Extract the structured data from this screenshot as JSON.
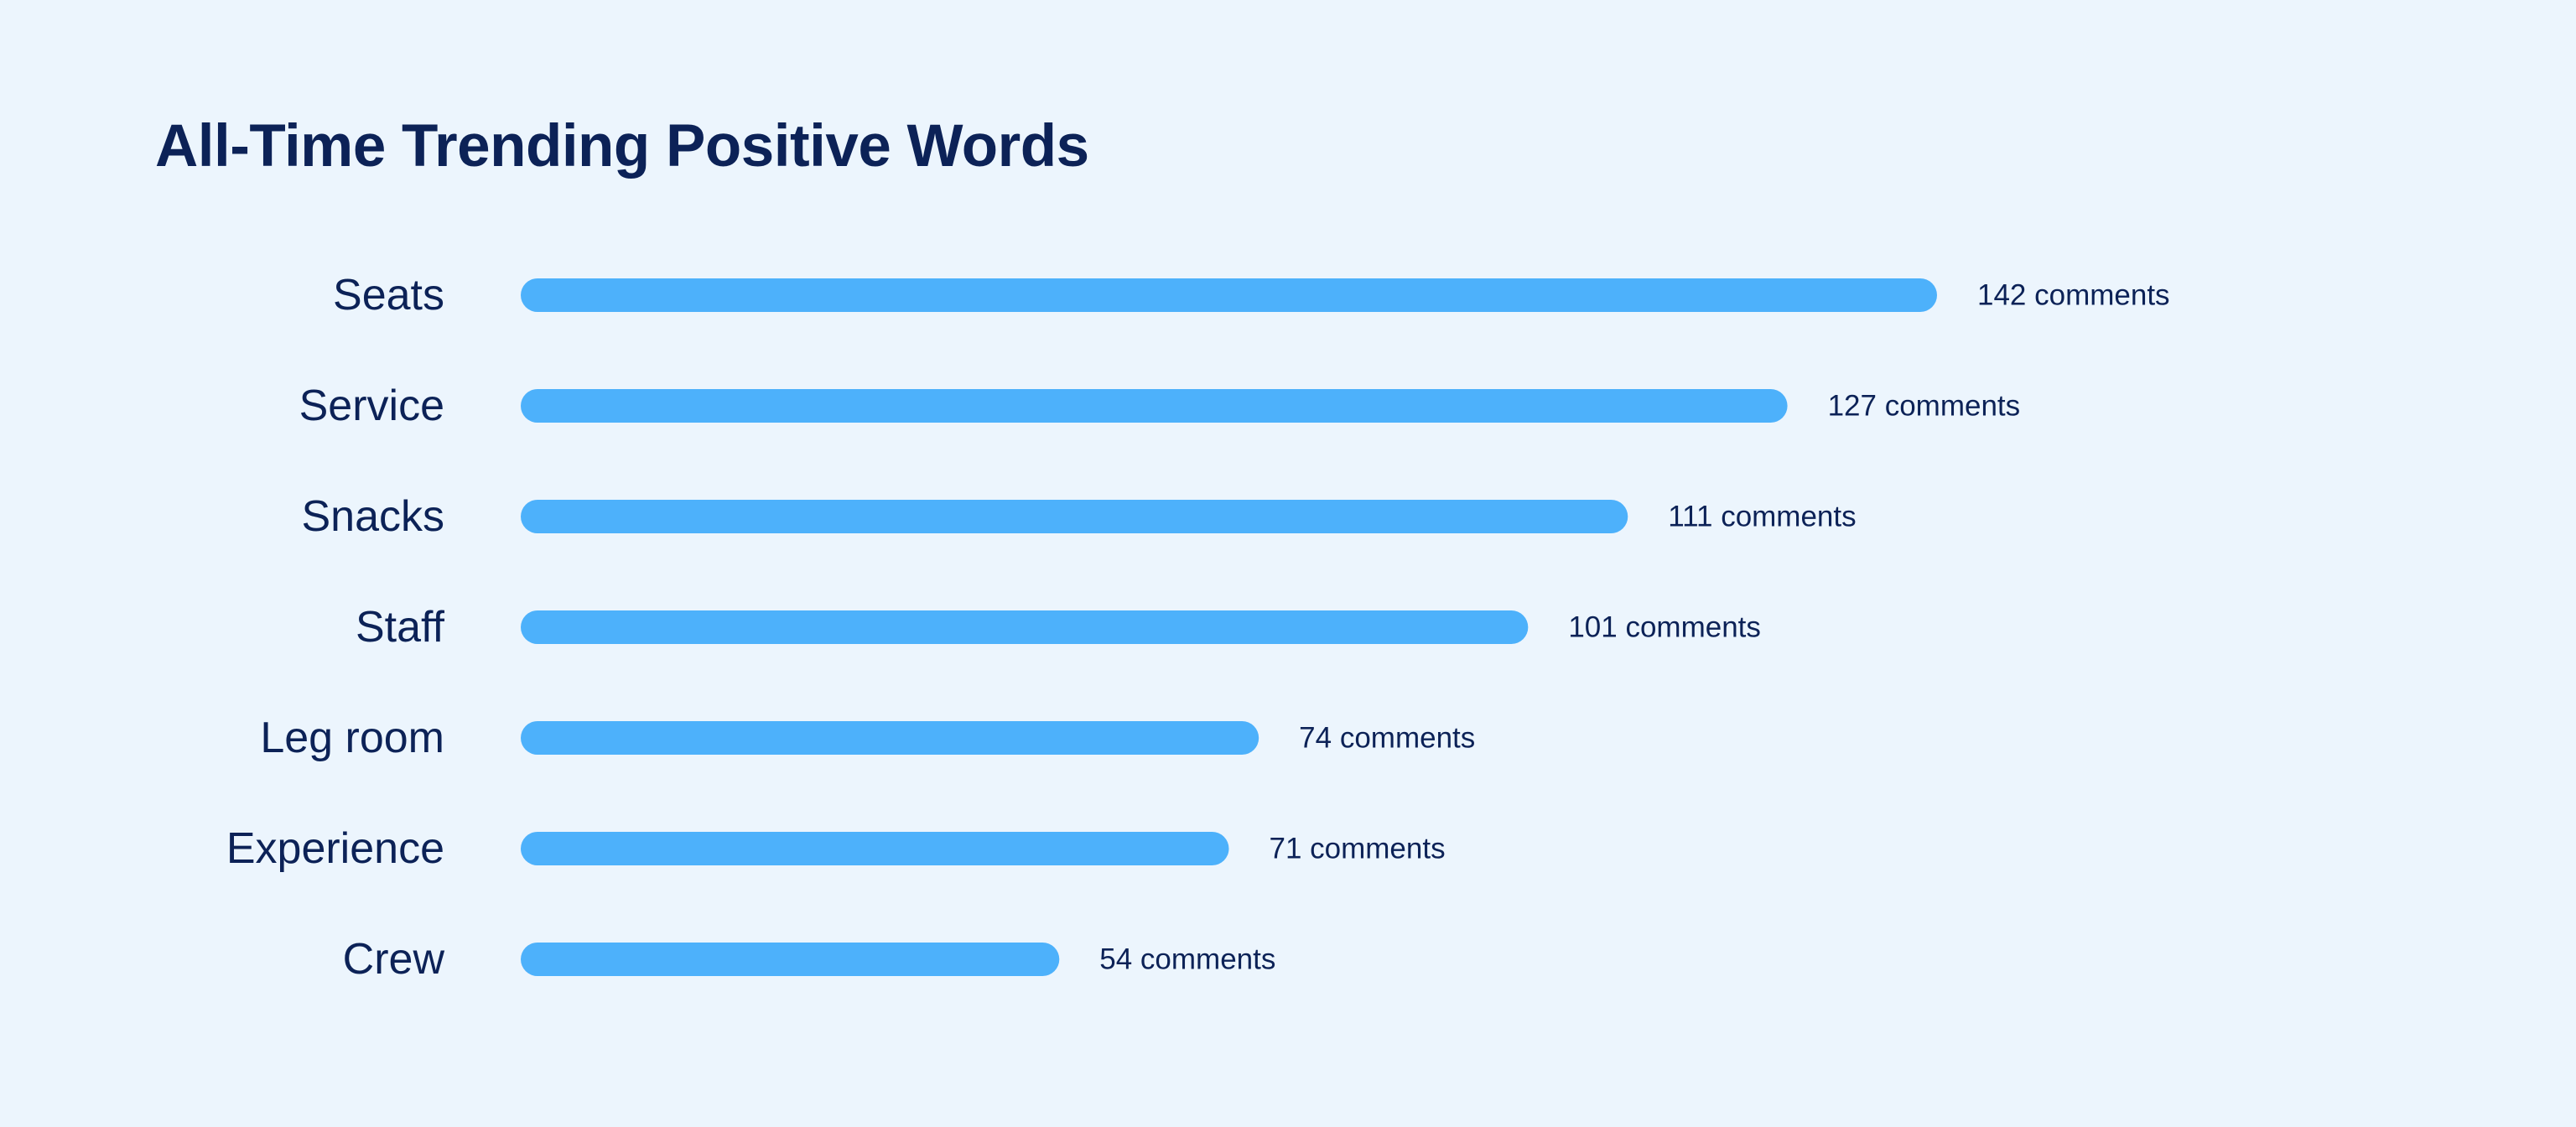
{
  "chart_data": {
    "type": "bar",
    "orientation": "horizontal",
    "title": "All-Time Trending Positive Words",
    "categories": [
      "Seats",
      "Service",
      "Snacks",
      "Staff",
      "Leg room",
      "Experience",
      "Crew"
    ],
    "values": [
      142,
      127,
      111,
      101,
      74,
      71,
      54
    ],
    "value_labels": [
      "142 comments",
      "127 comments",
      "111 comments",
      "101 comments",
      "74 comments",
      "71 comments",
      "54 comments"
    ],
    "xlim": [
      0,
      142
    ],
    "grid": false,
    "legend": "none",
    "colors": {
      "bar": "#4DB1FB",
      "text": "#0C2257",
      "background": "#ECF5FD"
    }
  }
}
